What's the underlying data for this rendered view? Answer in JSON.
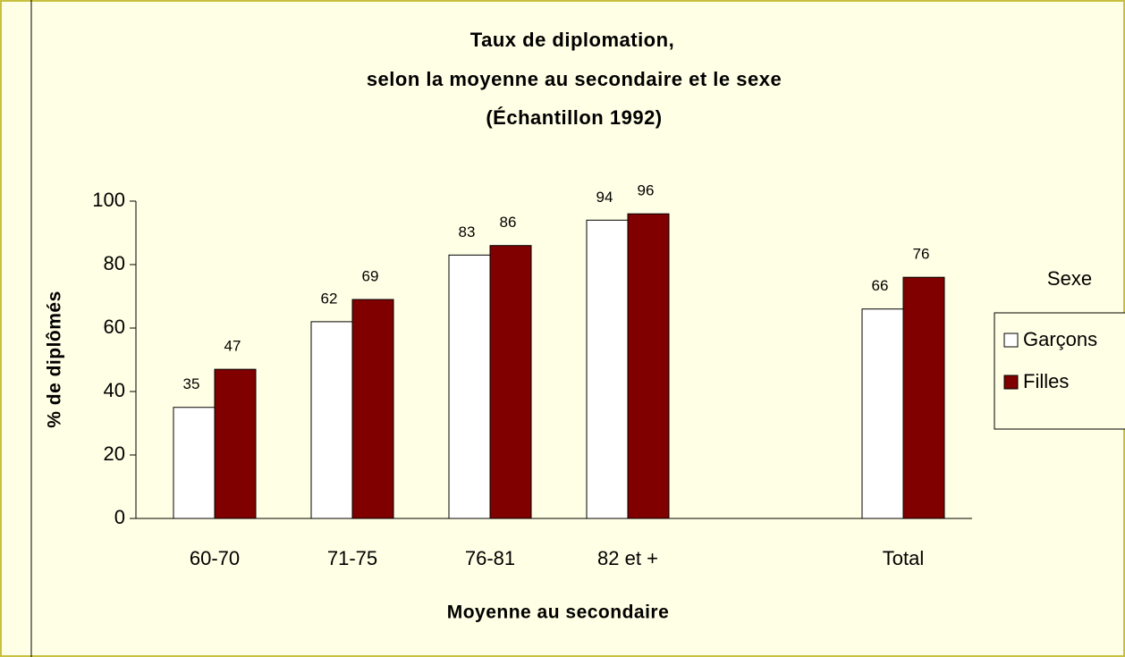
{
  "chart_data": {
    "type": "bar",
    "title": [
      "Taux de diplomation,",
      "selon la moyenne au secondaire et le sexe",
      "(Échantillon 1992)"
    ],
    "x_label": "Moyenne au secondaire",
    "y_label": "% de diplômés",
    "categories": [
      "60-70",
      "71-75",
      "76-81",
      "82 et +",
      null,
      "Total"
    ],
    "series": [
      {
        "name": "Garçons",
        "color": "#ffffff",
        "values": [
          35,
          62,
          83,
          94,
          null,
          66
        ]
      },
      {
        "name": "Filles",
        "color": "#800000",
        "values": [
          47,
          69,
          86,
          96,
          null,
          76
        ]
      }
    ],
    "legend_title": "Sexe",
    "legend": "right",
    "ylim": [
      0,
      100
    ],
    "yticks": [
      0,
      20,
      40,
      60,
      80,
      100
    ],
    "grid": false
  }
}
